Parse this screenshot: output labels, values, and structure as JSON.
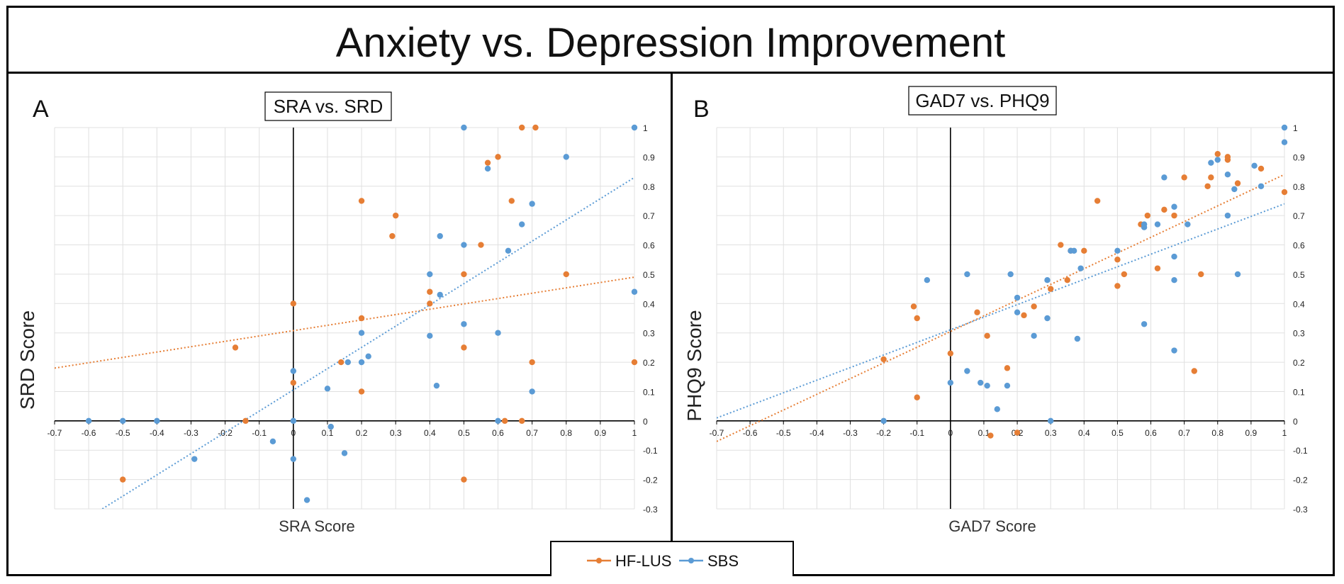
{
  "figure": {
    "title": "Anxiety vs. Depression Improvement"
  },
  "colors": {
    "hf_lus": "#e67e35",
    "sbs": "#5b9bd5",
    "grid": "#e0e0e0",
    "axis": "#000000"
  },
  "legend": {
    "items": [
      {
        "label": "HF-LUS",
        "color": "#e67e35"
      },
      {
        "label": "SBS",
        "color": "#5b9bd5"
      }
    ]
  },
  "chart_data": [
    {
      "panel": "A",
      "type": "scatter",
      "title": "SRA vs. SRD",
      "xlabel": "SRA Score",
      "ylabel": "SRD Score",
      "xlim": [
        -0.7,
        1
      ],
      "ylim": [
        -0.3,
        1
      ],
      "xticks": [
        -0.7,
        -0.6,
        -0.5,
        -0.4,
        -0.3,
        -0.2,
        -0.1,
        0,
        0.1,
        0.2,
        0.3,
        0.4,
        0.5,
        0.6,
        0.7,
        0.8,
        0.9,
        1
      ],
      "yticks": [
        -0.3,
        -0.2,
        -0.1,
        0,
        0.1,
        0.2,
        0.3,
        0.4,
        0.5,
        0.6,
        0.7,
        0.8,
        0.9,
        1
      ],
      "tick_labels_x": [
        "-0.7",
        "-0.6",
        "-0.5",
        "-0.4",
        "-0.3",
        "-0.2",
        "-0.1",
        "0",
        "0.1",
        "0.2",
        "0.3",
        "0.4",
        "0.5",
        "0.6",
        "0.7",
        "0.8",
        "0.9",
        "1"
      ],
      "tick_labels_y": [
        "-0.3",
        "-0.2",
        "-0.1",
        "0",
        "0.1",
        "0.2",
        "0.3",
        "0.4",
        "0.5",
        "0.6",
        "0.7",
        "0.8",
        "0.9",
        "1"
      ],
      "series": [
        {
          "name": "HF-LUS",
          "points": [
            [
              -0.5,
              -0.2
            ],
            [
              -0.17,
              0.25
            ],
            [
              -0.14,
              0
            ],
            [
              0,
              0.4
            ],
            [
              0,
              0.13
            ],
            [
              0.14,
              0.2
            ],
            [
              0.2,
              0.75
            ],
            [
              0.2,
              0.35
            ],
            [
              0.2,
              0.1
            ],
            [
              0.29,
              0.63
            ],
            [
              0.3,
              0.7
            ],
            [
              0.4,
              0.44
            ],
            [
              0.4,
              0.4
            ],
            [
              0.5,
              0.5
            ],
            [
              0.5,
              0.25
            ],
            [
              0.5,
              -0.2
            ],
            [
              0.55,
              0.6
            ],
            [
              0.57,
              0.88
            ],
            [
              0.6,
              0.9
            ],
            [
              0.62,
              0
            ],
            [
              0.64,
              0.75
            ],
            [
              0.67,
              1
            ],
            [
              0.67,
              0
            ],
            [
              0.7,
              0.2
            ],
            [
              0.71,
              1
            ],
            [
              0.8,
              0.5
            ],
            [
              1,
              0.2
            ]
          ],
          "trend": [
            [
              -0.7,
              0.18
            ],
            [
              1,
              0.49
            ]
          ]
        },
        {
          "name": "SBS",
          "points": [
            [
              -0.6,
              0
            ],
            [
              -0.5,
              0
            ],
            [
              -0.4,
              0
            ],
            [
              -0.29,
              -0.13
            ],
            [
              -0.06,
              -0.07
            ],
            [
              0,
              0.17
            ],
            [
              0,
              0
            ],
            [
              0,
              -0.13
            ],
            [
              0.04,
              -0.27
            ],
            [
              0.1,
              0.11
            ],
            [
              0.11,
              -0.02
            ],
            [
              0.15,
              -0.11
            ],
            [
              0.16,
              0.2
            ],
            [
              0.2,
              0.3
            ],
            [
              0.2,
              0.2
            ],
            [
              0.22,
              0.22
            ],
            [
              0.4,
              0.5
            ],
            [
              0.4,
              0.29
            ],
            [
              0.42,
              0.12
            ],
            [
              0.43,
              0.63
            ],
            [
              0.43,
              0.43
            ],
            [
              0.5,
              1
            ],
            [
              0.5,
              0.6
            ],
            [
              0.5,
              0.33
            ],
            [
              0.57,
              0.86
            ],
            [
              0.6,
              0.3
            ],
            [
              0.6,
              0
            ],
            [
              0.63,
              0.58
            ],
            [
              0.67,
              0.67
            ],
            [
              0.7,
              0.74
            ],
            [
              0.7,
              0.1
            ],
            [
              0.8,
              0.9
            ],
            [
              1,
              1
            ],
            [
              1,
              0.44
            ]
          ],
          "trend": [
            [
              -0.56,
              -0.3
            ],
            [
              1,
              0.83
            ]
          ]
        }
      ]
    },
    {
      "panel": "B",
      "type": "scatter",
      "title": "GAD7 vs. PHQ9",
      "xlabel": "GAD7 Score",
      "ylabel": "PHQ9 Score",
      "xlim": [
        -0.7,
        1
      ],
      "ylim": [
        -0.3,
        1
      ],
      "xticks": [
        -0.7,
        -0.6,
        -0.5,
        -0.4,
        -0.3,
        -0.2,
        -0.1,
        0,
        0.1,
        0.2,
        0.3,
        0.4,
        0.5,
        0.6,
        0.7,
        0.8,
        0.9,
        1
      ],
      "yticks": [
        -0.3,
        -0.2,
        -0.1,
        0,
        0.1,
        0.2,
        0.3,
        0.4,
        0.5,
        0.6,
        0.7,
        0.8,
        0.9,
        1
      ],
      "tick_labels_x": [
        "-0.7",
        "-0.6",
        "-0.5",
        "-0.4",
        "-0.3",
        "-0.2",
        "-0.1",
        "0",
        "0.1",
        "0.2",
        "0.3",
        "0.4",
        "0.5",
        "0.6",
        "0.7",
        "0.8",
        "0.9",
        "1"
      ],
      "tick_labels_y": [
        "-0.3",
        "-0.2",
        "-0.1",
        "0",
        "0.1",
        "0.2",
        "0.3",
        "0.4",
        "0.5",
        "0.6",
        "0.7",
        "0.8",
        "0.9",
        "1"
      ],
      "series": [
        {
          "name": "HF-LUS",
          "points": [
            [
              -0.2,
              0.21
            ],
            [
              -0.11,
              0.39
            ],
            [
              -0.1,
              0.35
            ],
            [
              -0.1,
              0.08
            ],
            [
              0,
              0.23
            ],
            [
              0.08,
              0.37
            ],
            [
              0.11,
              0.29
            ],
            [
              0.12,
              -0.05
            ],
            [
              0.17,
              0.18
            ],
            [
              0.2,
              -0.04
            ],
            [
              0.22,
              0.36
            ],
            [
              0.25,
              0.39
            ],
            [
              0.3,
              0.45
            ],
            [
              0.33,
              0.6
            ],
            [
              0.35,
              0.48
            ],
            [
              0.36,
              0.58
            ],
            [
              0.4,
              0.58
            ],
            [
              0.44,
              0.75
            ],
            [
              0.5,
              0.55
            ],
            [
              0.5,
              0.46
            ],
            [
              0.52,
              0.5
            ],
            [
              0.57,
              0.67
            ],
            [
              0.59,
              0.7
            ],
            [
              0.62,
              0.52
            ],
            [
              0.64,
              0.72
            ],
            [
              0.67,
              0.7
            ],
            [
              0.7,
              0.83
            ],
            [
              0.73,
              0.17
            ],
            [
              0.75,
              0.5
            ],
            [
              0.77,
              0.8
            ],
            [
              0.78,
              0.83
            ],
            [
              0.8,
              0.91
            ],
            [
              0.83,
              0.89
            ],
            [
              0.83,
              0.9
            ],
            [
              0.86,
              0.81
            ],
            [
              0.93,
              0.86
            ],
            [
              1,
              0.78
            ]
          ],
          "trend": [
            [
              -0.7,
              -0.07
            ],
            [
              1,
              0.84
            ]
          ]
        },
        {
          "name": "SBS",
          "points": [
            [
              -0.2,
              0
            ],
            [
              -0.07,
              0.48
            ],
            [
              0,
              0.13
            ],
            [
              0.05,
              0.5
            ],
            [
              0.05,
              0.17
            ],
            [
              0.09,
              0.13
            ],
            [
              0.11,
              0.12
            ],
            [
              0.14,
              0.04
            ],
            [
              0.17,
              0.12
            ],
            [
              0.18,
              0.5
            ],
            [
              0.2,
              0.42
            ],
            [
              0.2,
              0.37
            ],
            [
              0.25,
              0.29
            ],
            [
              0.29,
              0.48
            ],
            [
              0.29,
              0.35
            ],
            [
              0.3,
              0
            ],
            [
              0.36,
              0.58
            ],
            [
              0.37,
              0.58
            ],
            [
              0.38,
              0.28
            ],
            [
              0.39,
              0.52
            ],
            [
              0.5,
              0.58
            ],
            [
              0.58,
              0.33
            ],
            [
              0.58,
              0.66
            ],
            [
              0.58,
              0.67
            ],
            [
              0.62,
              0.67
            ],
            [
              0.64,
              0.83
            ],
            [
              0.67,
              0.73
            ],
            [
              0.67,
              0.56
            ],
            [
              0.67,
              0.48
            ],
            [
              0.67,
              0.24
            ],
            [
              0.71,
              0.67
            ],
            [
              0.78,
              0.88
            ],
            [
              0.8,
              0.89
            ],
            [
              0.83,
              0.84
            ],
            [
              0.83,
              0.7
            ],
            [
              0.85,
              0.79
            ],
            [
              0.86,
              0.5
            ],
            [
              0.91,
              0.87
            ],
            [
              0.93,
              0.8
            ],
            [
              1,
              1
            ],
            [
              1,
              0.95
            ]
          ],
          "trend": [
            [
              -0.7,
              0.01
            ],
            [
              1,
              0.74
            ]
          ]
        }
      ]
    }
  ]
}
